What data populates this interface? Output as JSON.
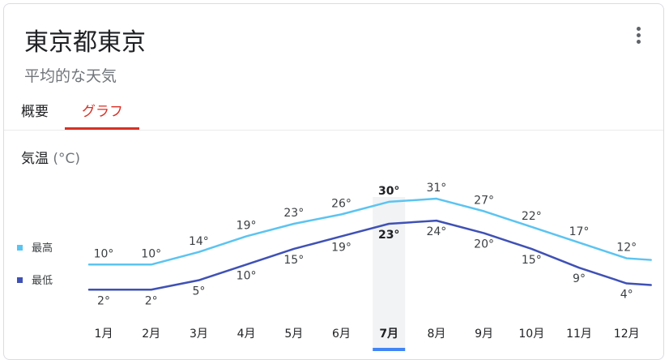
{
  "card": {
    "title": "東京都東京",
    "subtitle": "平均的な天気"
  },
  "tabs": [
    {
      "label": "概要",
      "active": false
    },
    {
      "label": "グラフ",
      "active": true
    }
  ],
  "section": {
    "title": "気温",
    "unit": "(°C)"
  },
  "legend": {
    "high": "最高",
    "low": "最低"
  },
  "colors": {
    "high": "#5bc4f1",
    "low": "#3f51b5",
    "accent": "#d93025",
    "selected_bar": "#4285f4"
  },
  "chart_data": {
    "type": "line",
    "categories": [
      "1月",
      "2月",
      "3月",
      "4月",
      "5月",
      "6月",
      "7月",
      "8月",
      "9月",
      "10月",
      "11月",
      "12月"
    ],
    "series": [
      {
        "name": "最高",
        "values": [
          10,
          10,
          14,
          19,
          23,
          26,
          30,
          31,
          27,
          22,
          17,
          12
        ],
        "labels": [
          "10°",
          "10°",
          "14°",
          "19°",
          "23°",
          "26°",
          "30°",
          "31°",
          "27°",
          "22°",
          "17°",
          "12°"
        ]
      },
      {
        "name": "最低",
        "values": [
          2,
          2,
          5,
          10,
          15,
          19,
          23,
          24,
          20,
          15,
          9,
          4
        ],
        "labels": [
          "2°",
          "2°",
          "5°",
          "10°",
          "15°",
          "19°",
          "23°",
          "24°",
          "20°",
          "15°",
          "9°",
          "4°"
        ]
      }
    ],
    "selected_index": 6,
    "ylim": [
      0,
      35
    ]
  }
}
